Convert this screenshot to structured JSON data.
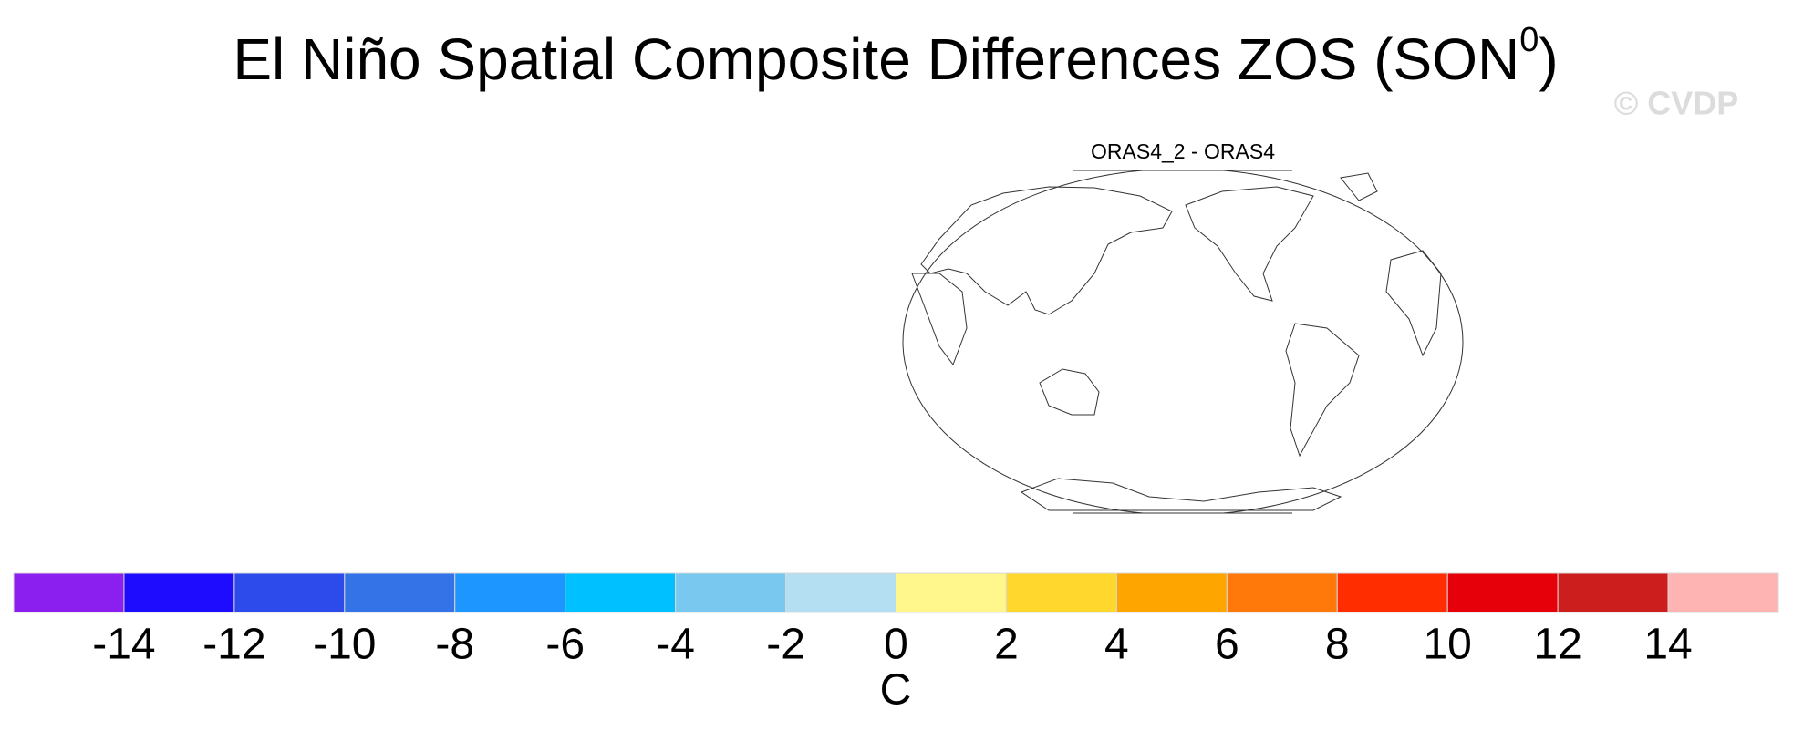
{
  "title": {
    "text": "El Niño Spatial Composite Differences ZOS (SON",
    "superscript": "0",
    "suffix": ")"
  },
  "watermark": "© CVDP",
  "map": {
    "title": "ORAS4_2 - ORAS4"
  },
  "colorbar": {
    "lim": [
      -16,
      16
    ],
    "ticks": [
      -14,
      -12,
      -10,
      -8,
      -6,
      -4,
      -2,
      0,
      2,
      4,
      6,
      8,
      10,
      12,
      14
    ],
    "colors": [
      "#8a1ff0",
      "#1e0cff",
      "#2d4aeb",
      "#3472e8",
      "#1e96ff",
      "#00c0ff",
      "#78c8f0",
      "#b4def2",
      "#fff68c",
      "#ffd72d",
      "#ffa500",
      "#ff780a",
      "#ff2d00",
      "#e6000a",
      "#cd1e1e",
      "#ffb4b4"
    ],
    "label": "C"
  }
}
